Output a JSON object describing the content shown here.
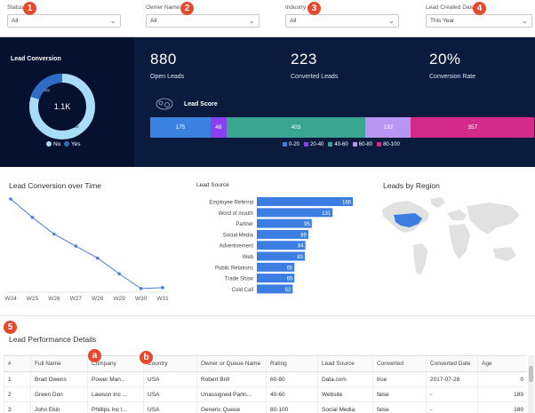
{
  "filters": [
    {
      "label": "Status",
      "value": "All"
    },
    {
      "label": "Owner Name",
      "value": "All"
    },
    {
      "label": "Industry",
      "value": "All"
    },
    {
      "label": "Lead Created Date",
      "value": "This Year"
    }
  ],
  "badges": {
    "b1": "1",
    "b2": "2",
    "b3": "3",
    "b4": "4",
    "b5": "5",
    "ba": "a",
    "bb": "b"
  },
  "lead_conversion": {
    "title": "Lead Conversion",
    "center": "1.1K",
    "slices": [
      {
        "name": "No",
        "value": 880,
        "label": "880",
        "color": "#a9dcf6"
      },
      {
        "name": "Yes",
        "value": 223,
        "label": "223",
        "color": "#2d6dc6"
      }
    ],
    "legend_no": "No",
    "legend_yes": "Yes"
  },
  "kpis": [
    {
      "value": "880",
      "label": "Open Leads"
    },
    {
      "value": "223",
      "label": "Converted Leads"
    },
    {
      "value": "20%",
      "label": "Conversion Rate"
    }
  ],
  "lead_score": {
    "title": "Lead Score",
    "segments": [
      {
        "name": "0-20",
        "value": 175,
        "label": "175",
        "color": "#3b82e0"
      },
      {
        "name": "20-40",
        "value": 46,
        "label": "46",
        "color": "#8a3ff0"
      },
      {
        "name": "40-60",
        "value": 403,
        "label": "403",
        "color": "#3aa591"
      },
      {
        "name": "60-80",
        "value": 132,
        "label": "132",
        "color": "#b797f2"
      },
      {
        "name": "80-100",
        "value": 357,
        "label": "357",
        "color": "#d42a8a"
      }
    ]
  },
  "chart_data": [
    {
      "type": "line",
      "title": "Lead Conversion over Time",
      "categories": [
        "W24",
        "W25",
        "W26",
        "W27",
        "W28",
        "W29",
        "W30",
        "W31"
      ],
      "values": [
        100,
        80,
        62,
        49,
        36,
        19,
        3,
        4
      ],
      "color": "#4a7fd9"
    },
    {
      "type": "bar",
      "title": "Lead Source",
      "categories": [
        "Employee Referral",
        "Word of mouth",
        "Partner",
        "Social Media",
        "Advertisement",
        "Web",
        "Public Relations",
        "Trade Show",
        "Cold Call"
      ],
      "values": [
        166,
        131,
        95,
        89,
        84,
        83,
        65,
        65,
        62
      ],
      "xlim": [
        0,
        166
      ],
      "color": "#3b7de0"
    }
  ],
  "region": {
    "title": "Leads by Region"
  },
  "table": {
    "title": "Lead Performance Details",
    "columns": [
      "#",
      "Full Name",
      "Company",
      "Country",
      "Owner or Queue Name",
      "Rating",
      "Lead Source",
      "Converted",
      "Converted Date",
      "Age"
    ],
    "rows": [
      [
        "1",
        "Brad Owens",
        "Power Man...",
        "USA",
        "Robert Brill",
        "60-80",
        "Data.com",
        "true",
        "2017-07-26",
        "0"
      ],
      [
        "2",
        "Green Don",
        "Lawson Inc ...",
        "USA",
        "Unassigned Partn...",
        "40-60",
        "Website",
        "false",
        "-",
        "189"
      ],
      [
        "3",
        "John Ekin",
        "Phillips Inc I...",
        "USA",
        "Generic Queue",
        "80-100",
        "Social Media",
        "false",
        "-",
        "189"
      ]
    ]
  }
}
